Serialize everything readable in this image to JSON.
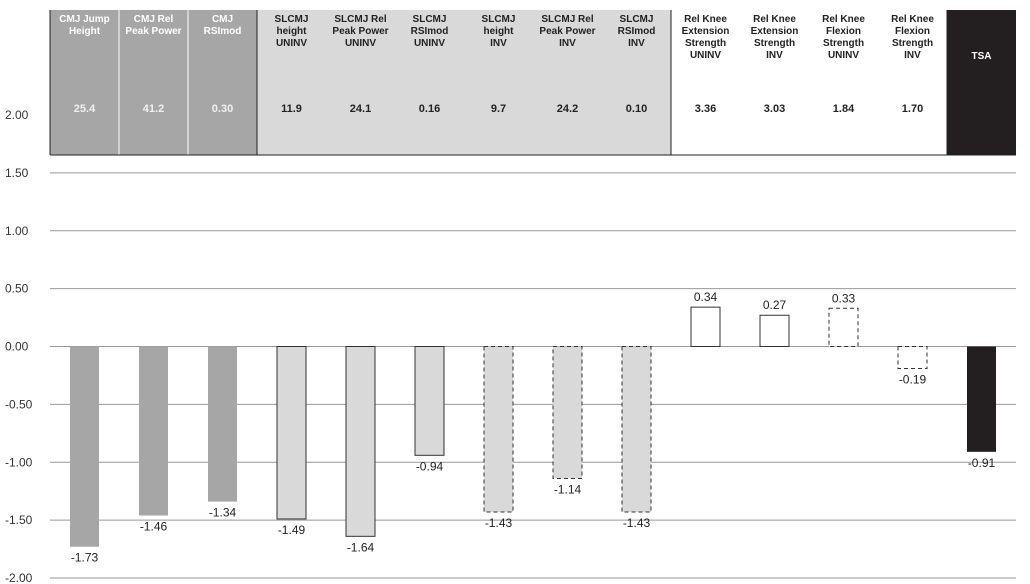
{
  "chart_data": {
    "type": "bar",
    "ylim": [
      -2.0,
      2.0
    ],
    "yticks": [
      "2.00",
      "1.50",
      "1.00",
      "0.50",
      "0.00",
      "-0.50",
      "-1.00",
      "-1.50",
      "-2.00"
    ],
    "categories": [
      {
        "header": [
          "CMJ Jump",
          "Height"
        ],
        "table_value": "25.4",
        "value": -1.73,
        "label": "-1.73",
        "group": "cmj",
        "style": "solid"
      },
      {
        "header": [
          "CMJ Rel",
          "Peak Power"
        ],
        "table_value": "41.2",
        "value": -1.46,
        "label": "-1.46",
        "group": "cmj",
        "style": "solid"
      },
      {
        "header": [
          "CMJ",
          "RSImod"
        ],
        "table_value": "0.30",
        "value": -1.34,
        "label": "-1.34",
        "group": "cmj",
        "style": "solid"
      },
      {
        "header": [
          "SLCMJ",
          "height",
          "UNINV"
        ],
        "table_value": "11.9",
        "value": -1.49,
        "label": "-1.49",
        "group": "slcmj",
        "style": "solid"
      },
      {
        "header": [
          "SLCMJ Rel",
          "Peak Power",
          "UNINV"
        ],
        "table_value": "24.1",
        "value": -1.64,
        "label": "-1.64",
        "group": "slcmj",
        "style": "solid"
      },
      {
        "header": [
          "SLCMJ",
          "RSImod",
          "UNINV"
        ],
        "table_value": "0.16",
        "value": -0.94,
        "label": "-0.94",
        "group": "slcmj",
        "style": "solid"
      },
      {
        "header": [
          "SLCMJ",
          "height",
          "INV"
        ],
        "table_value": "9.7",
        "value": -1.43,
        "label": "-1.43",
        "group": "slcmj",
        "style": "dashed"
      },
      {
        "header": [
          "SLCMJ Rel",
          "Peak Power",
          "INV"
        ],
        "table_value": "24.2",
        "value": -1.14,
        "label": "-1.14",
        "group": "slcmj",
        "style": "dashed"
      },
      {
        "header": [
          "SLCMJ",
          "RSImod",
          "INV"
        ],
        "table_value": "0.10",
        "value": -1.43,
        "label": "-1.43",
        "group": "slcmj",
        "style": "dashed"
      },
      {
        "header": [
          "Rel Knee",
          "Extension",
          "Strength",
          "UNINV"
        ],
        "table_value": "3.36",
        "value": 0.34,
        "label": "0.34",
        "group": "knee",
        "style": "solid"
      },
      {
        "header": [
          "Rel Knee",
          "Extension",
          "Strength",
          "INV"
        ],
        "table_value": "3.03",
        "value": 0.27,
        "label": "0.27",
        "group": "knee",
        "style": "solid"
      },
      {
        "header": [
          "Rel Knee",
          "Flexion",
          "Strength",
          "UNINV"
        ],
        "table_value": "1.84",
        "value": 0.33,
        "label": "0.33",
        "group": "knee",
        "style": "dashed"
      },
      {
        "header": [
          "Rel Knee",
          "Flexion",
          "Strength",
          "INV"
        ],
        "table_value": "1.70",
        "value": -0.19,
        "label": "-0.19",
        "group": "knee",
        "style": "dashed"
      },
      {
        "header": [
          "TSA"
        ],
        "table_value": "",
        "value": -0.91,
        "label": "-0.91",
        "group": "tsa",
        "style": "solid"
      }
    ]
  },
  "colors": {
    "cmj_fill": "#a6a6a6",
    "slcmj_fill": "#d9d9d9",
    "knee_fill": "#ffffff",
    "tsa_fill": "#231f20",
    "gridline": "#999999",
    "border": "#222222"
  }
}
